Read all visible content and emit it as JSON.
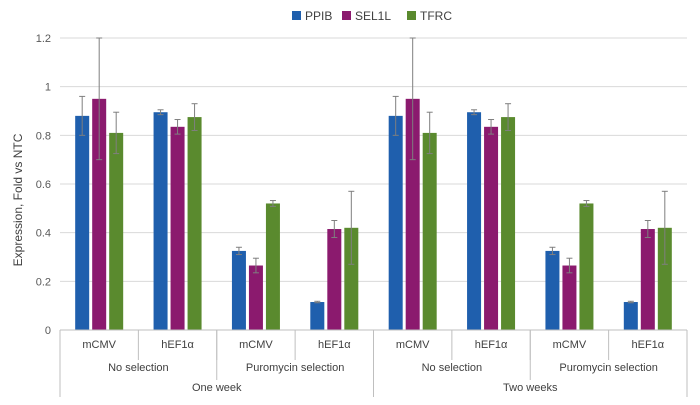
{
  "chart_data": {
    "type": "bar",
    "ylabel": "Expression, Fold vs NTC",
    "ylim": [
      0,
      1.2
    ],
    "yticks": [
      "0",
      "0.2",
      "0.4",
      "0.6",
      "0.8",
      "1",
      "1.2"
    ],
    "legend_position": "top",
    "colors": {
      "PPIB": "#1f5fad",
      "SEL1L": "#8b1a6e",
      "TFRC": "#5a8a2e"
    },
    "legend": [
      "PPIB",
      "SEL1L",
      "TFRC"
    ],
    "group_levels": {
      "promoter": [
        "mCMV",
        "hEF1α",
        "mCMV",
        "hEF1α",
        "mCMV",
        "hEF1α",
        "mCMV",
        "hEF1α"
      ],
      "selection": [
        "No selection",
        "Puromycin selection",
        "No selection",
        "Puromycin selection"
      ],
      "time": [
        "One week",
        "Two weeks"
      ]
    },
    "series": [
      {
        "name": "PPIB",
        "values": [
          0.88,
          0.895,
          0.325,
          0.115,
          0.88,
          0.895,
          0.325,
          0.115
        ],
        "errors": [
          0.08,
          0.01,
          0.015,
          0.003,
          0.08,
          0.01,
          0.015,
          0.003
        ]
      },
      {
        "name": "SEL1L",
        "values": [
          0.95,
          0.835,
          0.265,
          0.415,
          0.95,
          0.835,
          0.265,
          0.415
        ],
        "errors": [
          0.25,
          0.03,
          0.03,
          0.035,
          0.25,
          0.03,
          0.03,
          0.035
        ]
      },
      {
        "name": "TFRC",
        "values": [
          0.81,
          0.875,
          0.52,
          0.42,
          0.81,
          0.875,
          0.52,
          0.42
        ],
        "errors": [
          0.085,
          0.055,
          0.012,
          0.15,
          0.085,
          0.055,
          0.012,
          0.15
        ]
      }
    ]
  }
}
